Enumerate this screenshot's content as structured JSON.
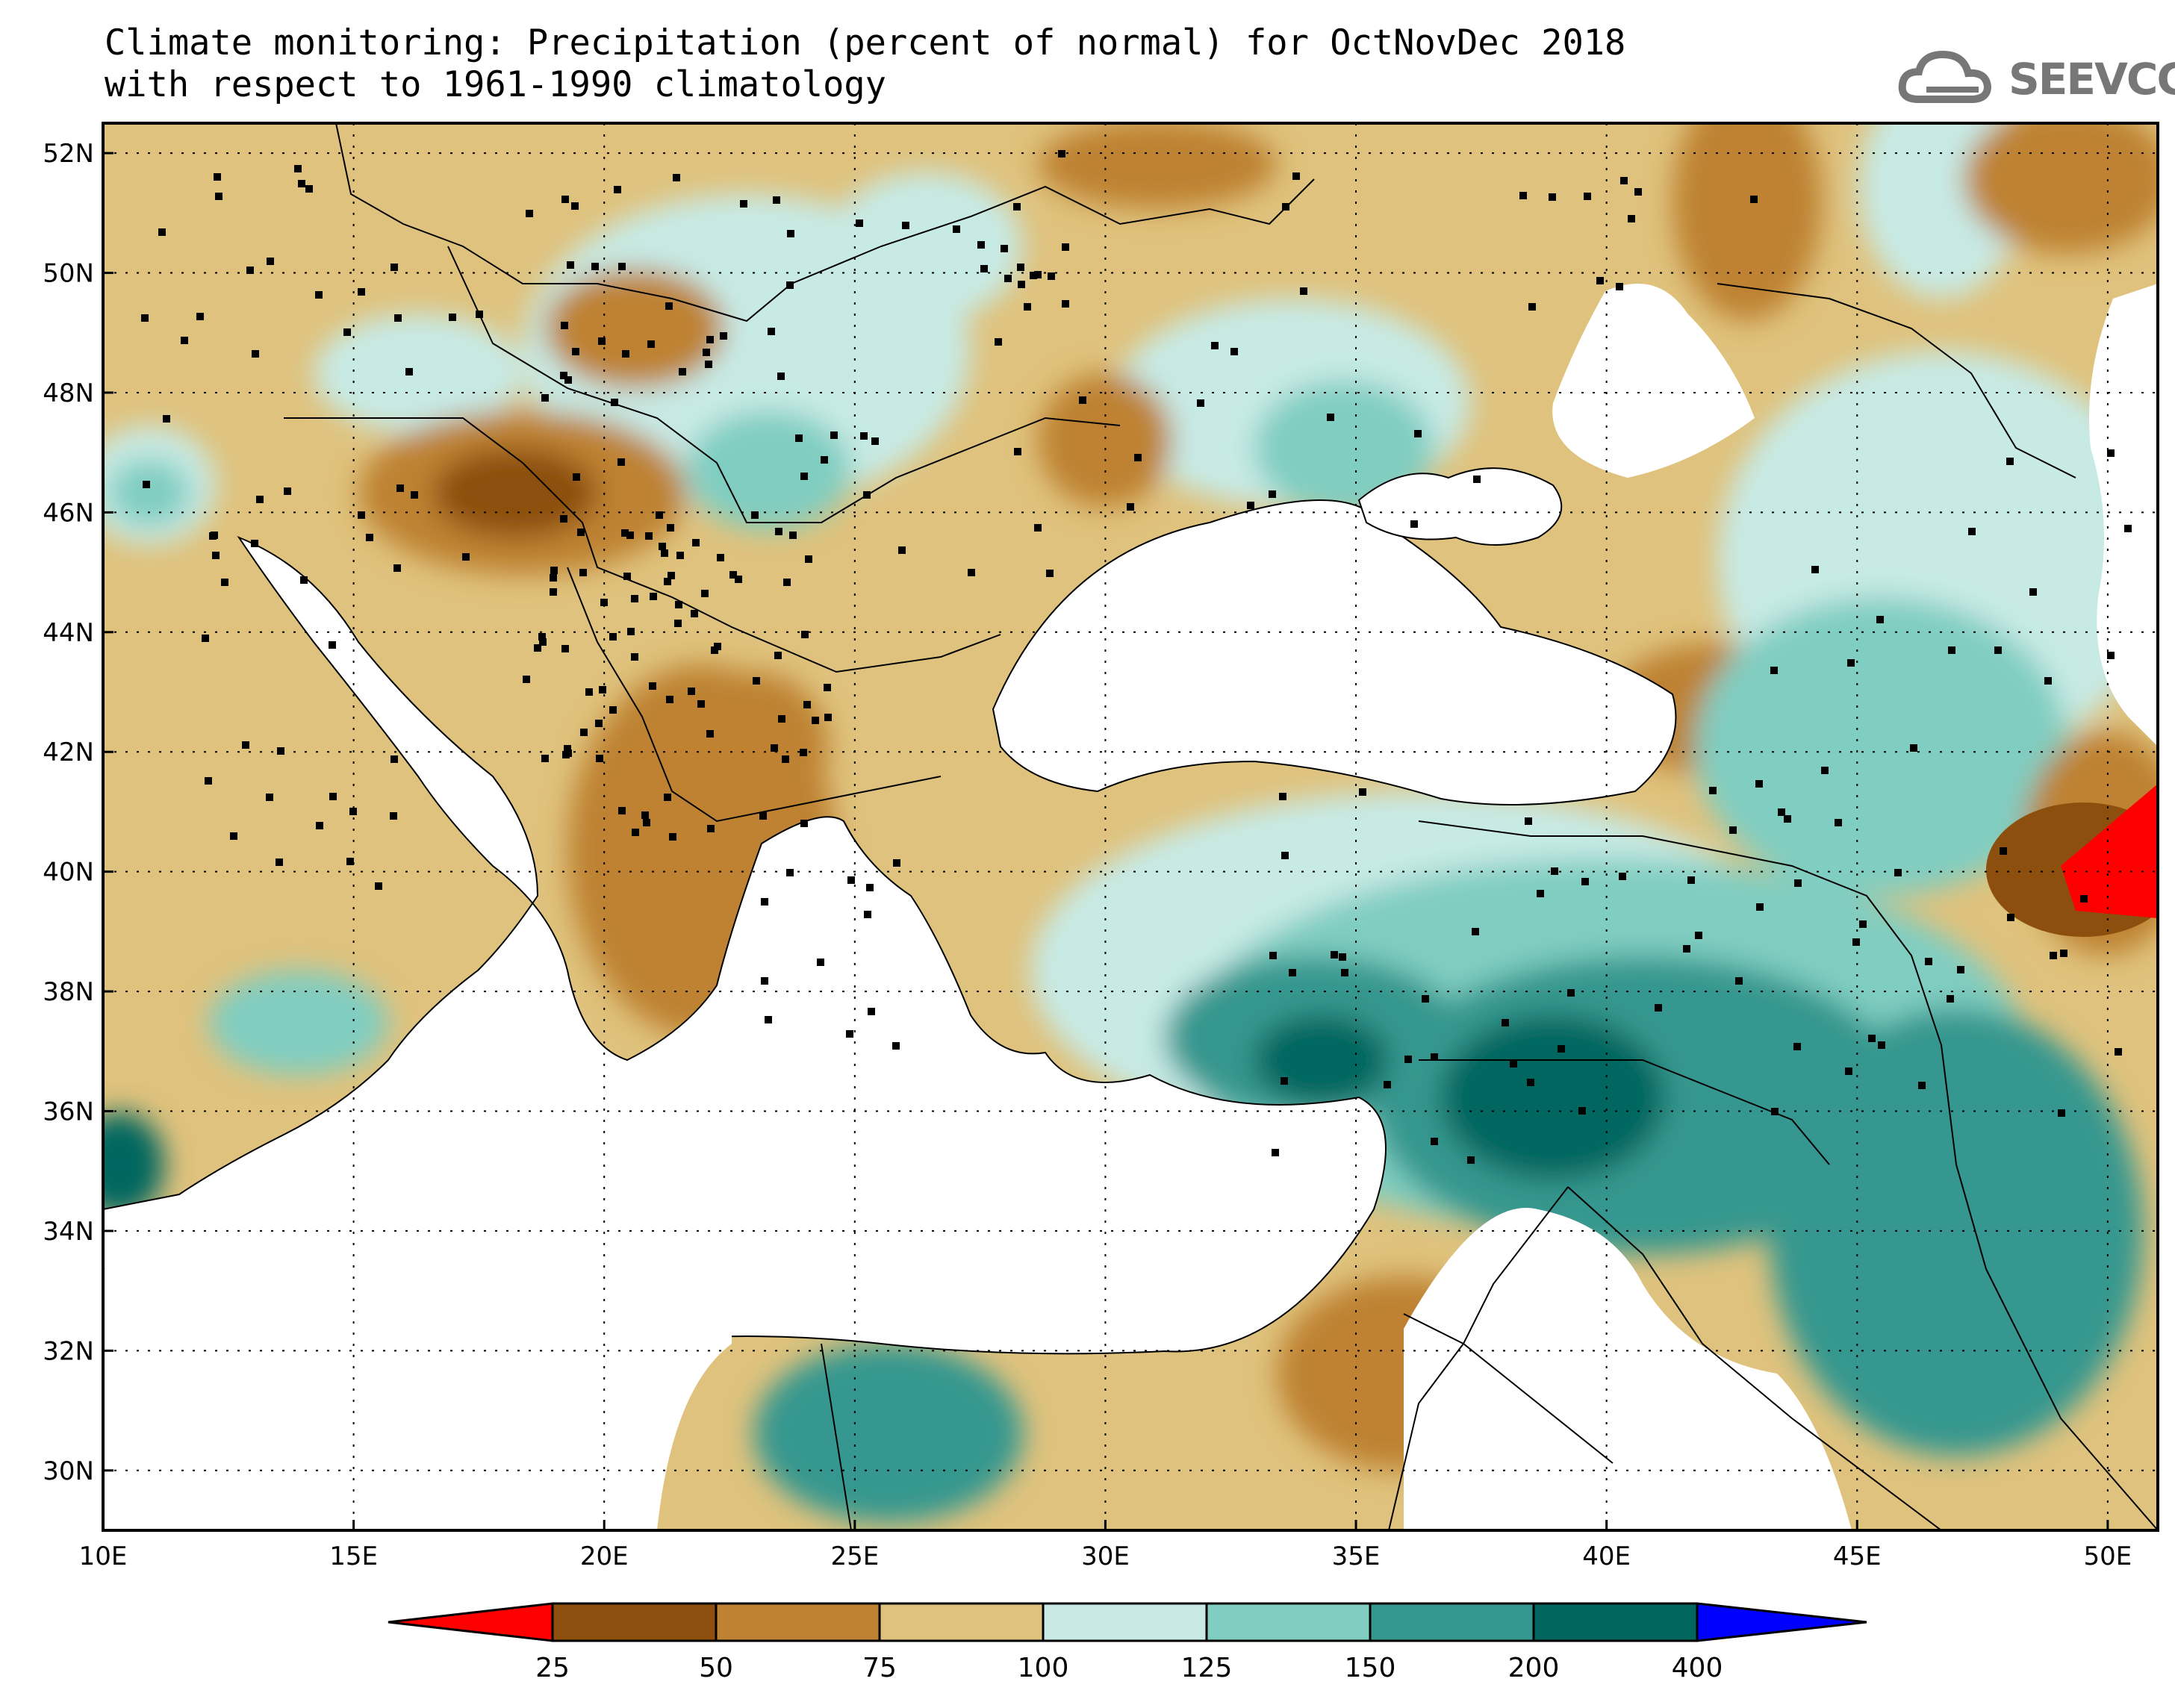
{
  "title": {
    "line1": "Climate monitoring: Precipitation (percent of normal) for OctNovDec 2018",
    "line2": "with respect to 1961-1990 climatology"
  },
  "logo": {
    "text": "SEEVCCC",
    "icon": "cloud-icon",
    "color": "#777777"
  },
  "map": {
    "lon_range": [
      10,
      51
    ],
    "lat_range": [
      29,
      52.5
    ],
    "lon_ticks": [
      "10E",
      "15E",
      "20E",
      "25E",
      "30E",
      "35E",
      "40E",
      "45E",
      "50E"
    ],
    "lat_ticks": [
      "30N",
      "32N",
      "34N",
      "36N",
      "38N",
      "40N",
      "42N",
      "44N",
      "46N",
      "48N",
      "50N",
      "52N"
    ],
    "grid": "dotted"
  },
  "legend": {
    "labels": [
      "25",
      "50",
      "75",
      "100",
      "125",
      "150",
      "200",
      "400"
    ],
    "colors": {
      "below_25": "#ff0000",
      "25_50": "#8c4f0e",
      "50_75": "#be8232",
      "75_100": "#dfc27d",
      "100_125": "#c7eae5",
      "125_150": "#80cdc1",
      "150_200": "#35978f",
      "200_400": "#01665e",
      "above_400": "#0000ff"
    }
  }
}
